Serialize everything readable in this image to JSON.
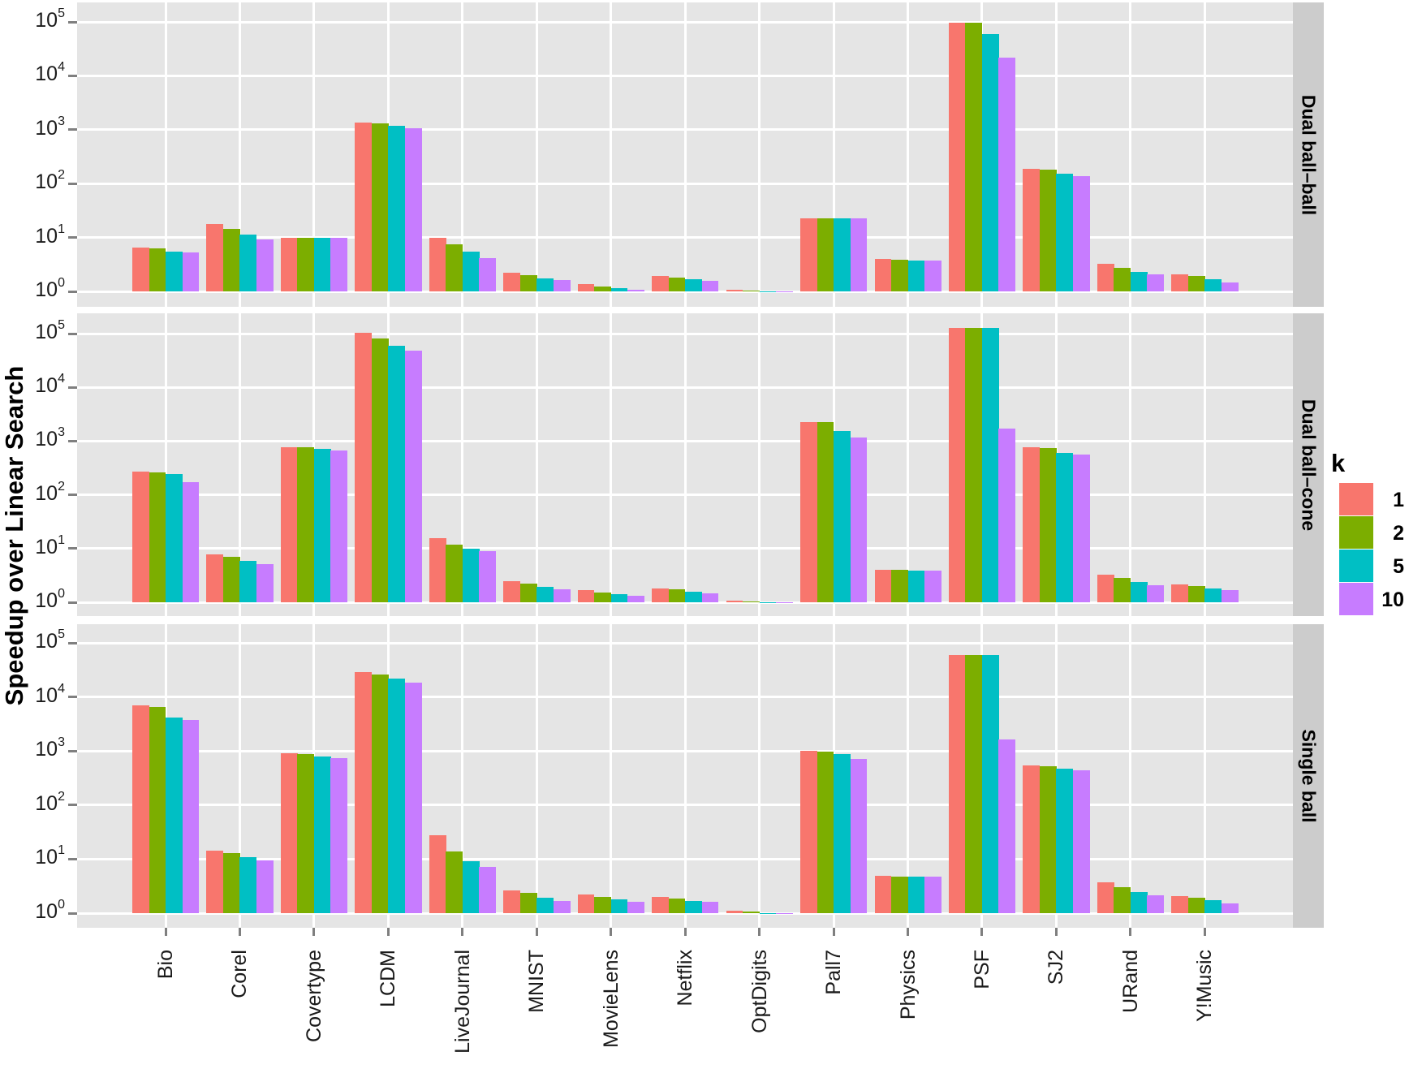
{
  "chart_data": {
    "type": "bar",
    "title": "",
    "xlabel": "",
    "ylabel": "Speedup over Linear Search",
    "yscale": "log10",
    "ylim": [
      1,
      100000
    ],
    "y_ticks": [
      "10^0",
      "10^1",
      "10^2",
      "10^3",
      "10^4",
      "10^5"
    ],
    "grid": true,
    "legend": {
      "title": "k",
      "position": "right",
      "entries": [
        "1",
        "2",
        "5",
        "10"
      ]
    },
    "colors": {
      "1": "#f8766d",
      "2": "#7cae00",
      "5": "#00bfc4",
      "10": "#c77cff"
    },
    "categories": [
      "Bio",
      "Corel",
      "Covertype",
      "LCDM",
      "LiveJournal",
      "MNIST",
      "MovieLens",
      "Netflix",
      "OptDigits",
      "Pall7",
      "Physics",
      "PSF",
      "SJ2",
      "URand",
      "Y!Music"
    ],
    "facets": [
      {
        "name": "Dual ball–ball",
        "series": [
          {
            "name": "1",
            "values": [
              6.6,
              17.5,
              10,
              1340,
              10,
              2.25,
              1.38,
              1.9,
              1.08,
              23,
              4.06,
              95000,
              186,
              3.2,
              2.1
            ]
          },
          {
            "name": "2",
            "values": [
              6.3,
              14.6,
              10,
              1290,
              7.6,
              2.0,
              1.25,
              1.83,
              1.05,
              23,
              3.9,
              95000,
              181,
              2.75,
              1.9
            ]
          },
          {
            "name": "5",
            "values": [
              5.4,
              11.5,
              10,
              1170,
              5.4,
              1.76,
              1.16,
              1.7,
              1.0,
              22.3,
              3.8,
              60000,
              151,
              2.3,
              1.7
            ]
          },
          {
            "name": "10",
            "values": [
              5.2,
              9.3,
              10,
              1050,
              4.1,
              1.65,
              1.08,
              1.59,
              0.98,
              22.3,
              3.8,
              21500,
              137,
              2.1,
              1.47
            ]
          }
        ]
      },
      {
        "name": "Dual ball–cone",
        "series": [
          {
            "name": "1",
            "values": [
              275,
              7.8,
              780,
              104000,
              15.5,
              2.46,
              1.68,
              1.8,
              1.07,
              2290,
              4.0,
              129000,
              780,
              3.25,
              2.14
            ]
          },
          {
            "name": "2",
            "values": [
              265,
              7.0,
              760,
              82000,
              11.8,
              2.22,
              1.52,
              1.74,
              1.03,
              2290,
              4.0,
              129000,
              730,
              2.83,
              2.0
            ]
          },
          {
            "name": "5",
            "values": [
              247,
              5.9,
              710,
              59000,
              9.9,
              1.93,
              1.41,
              1.57,
              1.0,
              1550,
              3.9,
              129000,
              610,
              2.38,
              1.8
            ]
          },
          {
            "name": "10",
            "values": [
              173,
              5.1,
              660,
              48000,
              8.9,
              1.74,
              1.32,
              1.47,
              0.98,
              1150,
              3.9,
              1690,
              570,
              2.07,
              1.68
            ]
          }
        ]
      },
      {
        "name": "Single ball",
        "series": [
          {
            "name": "1",
            "values": [
              7040,
              14.4,
              915,
              29000,
              27.6,
              2.63,
              2.22,
              2.0,
              1.1,
              1020,
              4.9,
              60000,
              545,
              3.7,
              2.07
            ]
          },
          {
            "name": "2",
            "values": [
              6600,
              13,
              885,
              26300,
              13.8,
              2.38,
              2.0,
              1.86,
              1.07,
              980,
              4.75,
              60000,
              525,
              3.0,
              1.93
            ]
          },
          {
            "name": "5",
            "values": [
              4170,
              10.9,
              800,
              22200,
              9.2,
              1.93,
              1.8,
              1.68,
              1.0,
              890,
              4.75,
              60000,
              475,
              2.46,
              1.74
            ]
          },
          {
            "name": "10",
            "values": [
              3780,
              9.5,
              745,
              18600,
              7.2,
              1.68,
              1.62,
              1.62,
              0.98,
              720,
              4.75,
              1650,
              445,
              2.14,
              1.51
            ]
          }
        ]
      }
    ]
  },
  "axis": {
    "ytitle": "Speedup over Linear Search",
    "ytick_base": "10",
    "ytick_exponents": [
      "0",
      "1",
      "2",
      "3",
      "4",
      "5"
    ]
  },
  "legend": {
    "title": "k",
    "items": [
      {
        "label": "1",
        "color": "#f8766d"
      },
      {
        "label": "2",
        "color": "#7cae00"
      },
      {
        "label": "5",
        "color": "#00bfc4"
      },
      {
        "label": "10",
        "color": "#c77cff"
      }
    ]
  },
  "strips": [
    "Dual ball–ball",
    "Dual ball–cone",
    "Single ball"
  ]
}
